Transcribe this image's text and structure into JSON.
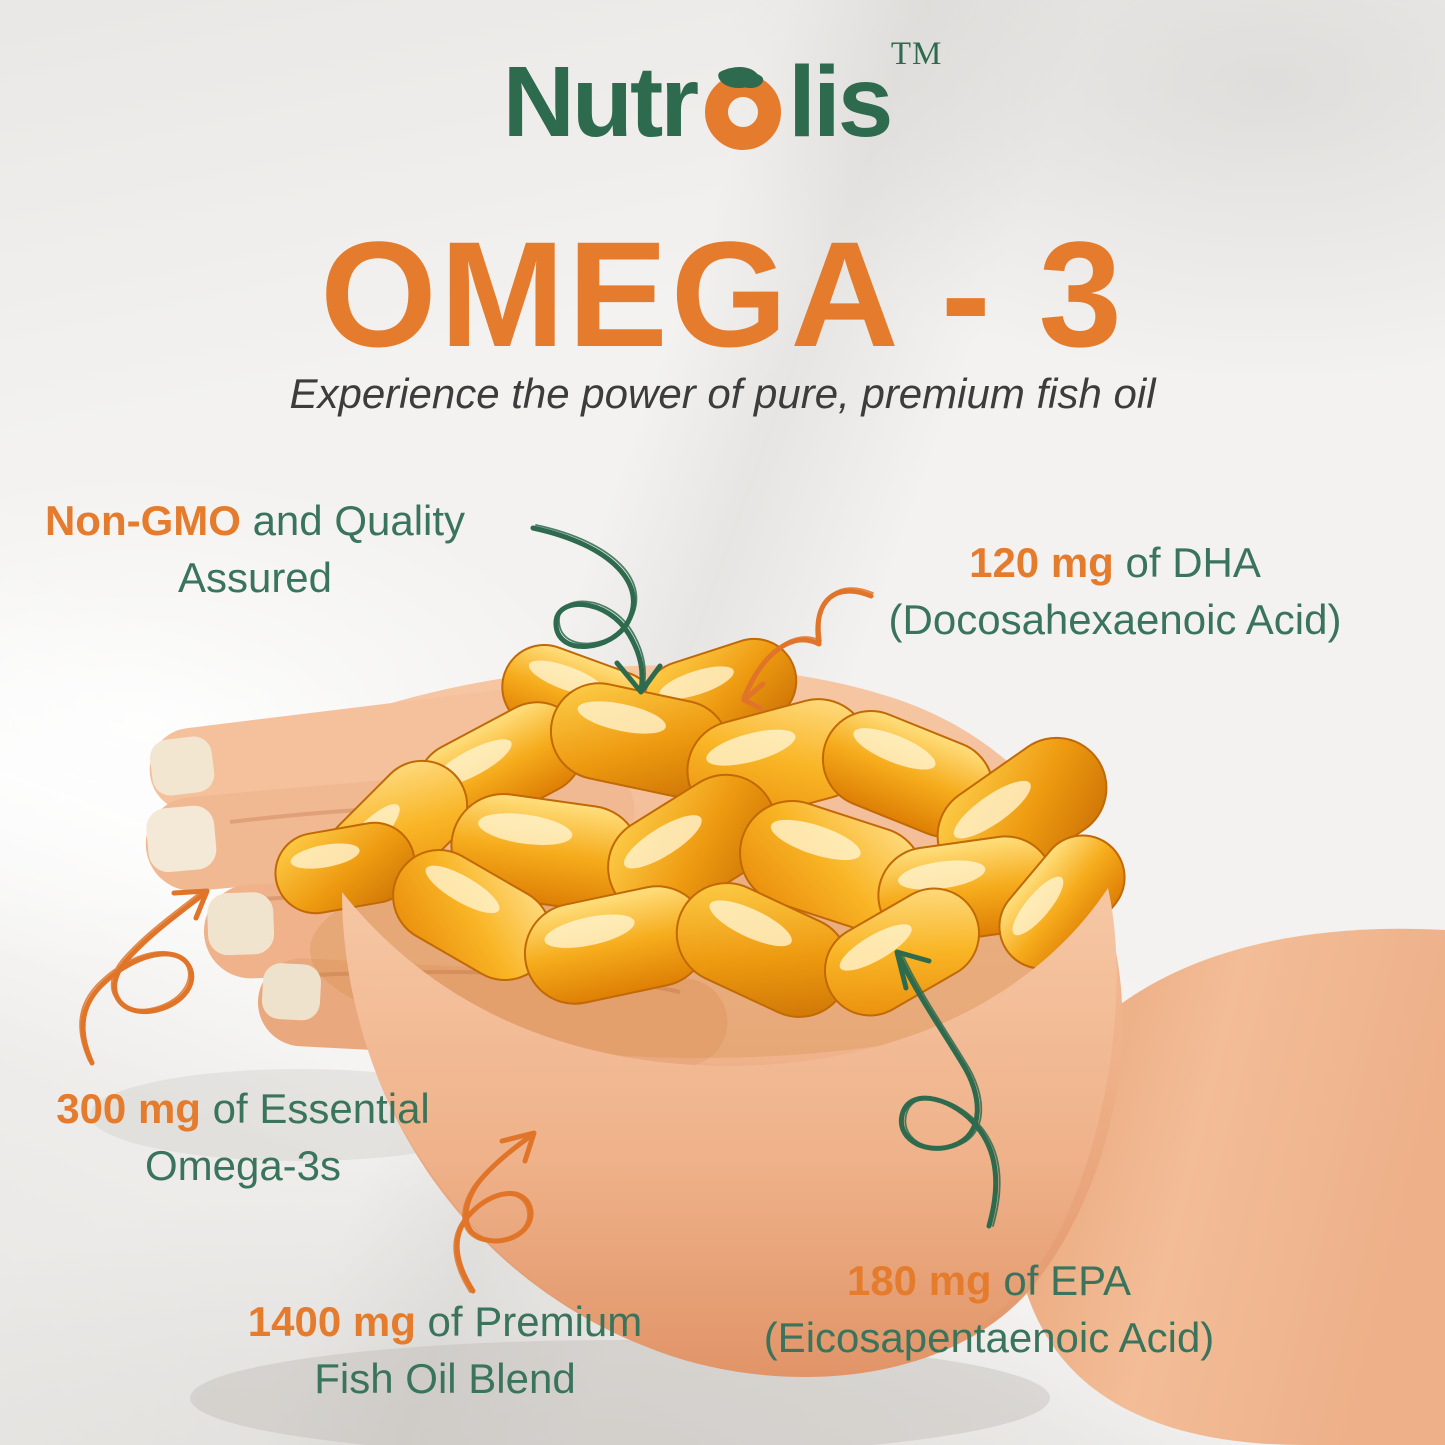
{
  "brand": {
    "name_prefix": "Nutr",
    "name_suffix": "lis",
    "trademark": "TM"
  },
  "hero": {
    "title": "OMEGA - 3",
    "subtitle": "Experience the power of pure, premium fish oil"
  },
  "callouts": {
    "non_gmo": {
      "highlight": "Non-GMO",
      "rest": " and Quality",
      "line2": "Assured"
    },
    "dha": {
      "highlight": "120 mg",
      "rest": " of DHA",
      "line2": "(Docosahexaenoic Acid)"
    },
    "omega_3s": {
      "highlight": "300 mg",
      "rest": " of Essential",
      "line2": "Omega-3s"
    },
    "fish_oil": {
      "highlight": "1400 mg",
      "rest": " of Premium",
      "line2": "Fish Oil Blend"
    },
    "epa": {
      "highlight": "180 mg",
      "rest": " of EPA",
      "line2": "(Eicosapentaenoic Acid)"
    }
  },
  "colors": {
    "accent_orange": "#E57C2D",
    "arrow_orange": "#E07428",
    "brand_green": "#2E6A4D",
    "text_green": "#3A745D",
    "subtitle_gray": "#3C3C3C",
    "capsule_gold": "#F2A51D"
  },
  "illustration": {
    "description": "Open hand holding a pile of golden fish oil softgel capsules"
  }
}
